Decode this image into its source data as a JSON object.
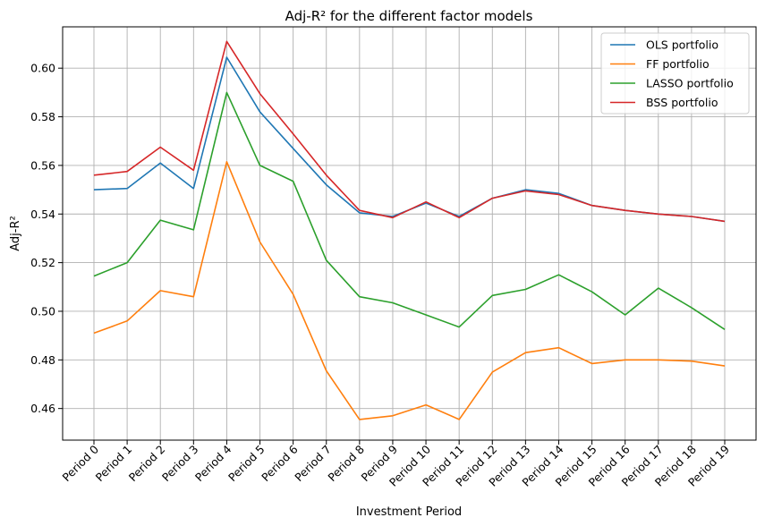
{
  "chart_data": {
    "type": "line",
    "title": "Adj-R² for the different factor models",
    "xlabel": "Investment Period",
    "ylabel": "Adj-R²",
    "categories": [
      "Period 0",
      "Period 1",
      "Period 2",
      "Period 3",
      "Period 4",
      "Period 5",
      "Period 6",
      "Period 7",
      "Period 8",
      "Period 9",
      "Period 10",
      "Period 11",
      "Period 12",
      "Period 13",
      "Period 14",
      "Period 15",
      "Period 16",
      "Period 17",
      "Period 18",
      "Period 19"
    ],
    "ylim": [
      0.447,
      0.617
    ],
    "yticks": [
      "0.46",
      "0.48",
      "0.50",
      "0.52",
      "0.54",
      "0.56",
      "0.58",
      "0.60"
    ],
    "grid": true,
    "legend_position": "top-right",
    "series": [
      {
        "name": "OLS portfolio",
        "color": "#1f77b4",
        "values": [
          0.55,
          0.5505,
          0.561,
          0.5505,
          0.6045,
          0.582,
          0.567,
          0.552,
          0.5405,
          0.539,
          0.5445,
          0.539,
          0.5465,
          0.55,
          0.5485,
          0.5435,
          0.5415,
          0.54,
          0.539,
          0.537
        ]
      },
      {
        "name": "FF portfolio",
        "color": "#ff7f0e",
        "values": [
          0.491,
          0.496,
          0.5085,
          0.506,
          0.5615,
          0.5285,
          0.507,
          0.4755,
          0.4555,
          0.457,
          0.4615,
          0.4555,
          0.475,
          0.483,
          0.485,
          0.4785,
          0.48,
          0.48,
          0.4795,
          0.4775
        ]
      },
      {
        "name": "LASSO portfolio",
        "color": "#2ca02c",
        "values": [
          0.5145,
          0.52,
          0.5375,
          0.5335,
          0.59,
          0.56,
          0.5535,
          0.521,
          0.506,
          0.5035,
          0.4985,
          0.4935,
          0.5065,
          0.509,
          0.515,
          0.508,
          0.4985,
          0.5095,
          0.5015,
          0.4925
        ]
      },
      {
        "name": "BSS portfolio",
        "color": "#d62728",
        "values": [
          0.556,
          0.5575,
          0.5675,
          0.558,
          0.611,
          0.5895,
          0.573,
          0.556,
          0.5415,
          0.5385,
          0.545,
          0.5385,
          0.5465,
          0.5495,
          0.548,
          0.5435,
          0.5415,
          0.54,
          0.539,
          0.537
        ]
      }
    ]
  }
}
